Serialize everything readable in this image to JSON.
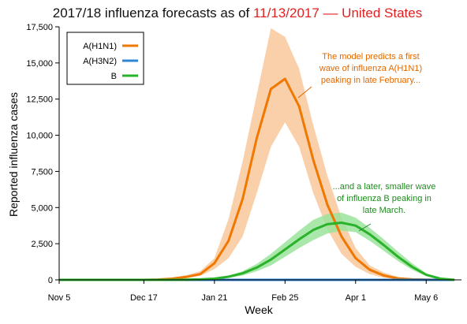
{
  "chart_data": {
    "type": "line",
    "title": {
      "prefix": "2017/18 influenza forecasts as of ",
      "date": "11/13/2017",
      "separator": " –– ",
      "region": "United States",
      "highlight_color": "#e02020"
    },
    "xlabel": "Week",
    "ylabel": "Reported influenza cases",
    "ylim": [
      0,
      17500
    ],
    "yticks": [
      0,
      2500,
      5000,
      7500,
      10000,
      12500,
      15000,
      17500
    ],
    "ytick_labels": [
      "0",
      "2,500",
      "5,000",
      "7,500",
      "10,000",
      "12,500",
      "15,000",
      "17,500"
    ],
    "xticks": [
      {
        "week": 0,
        "label": "Nov 5"
      },
      {
        "week": 6,
        "label": "Dec 17"
      },
      {
        "week": 11,
        "label": "Jan 21"
      },
      {
        "week": 16,
        "label": "Feb 25"
      },
      {
        "week": 21,
        "label": "Apr 1"
      },
      {
        "week": 26,
        "label": "May 6"
      }
    ],
    "xlim": [
      0,
      28.5
    ],
    "legend": {
      "position": "top-left",
      "entries": [
        {
          "name": "A(H1N1)",
          "color": "#f07800"
        },
        {
          "name": "A(H3N2)",
          "color": "#2f86d6"
        },
        {
          "name": "B",
          "color": "#2ab32a"
        }
      ]
    },
    "series": [
      {
        "name": "A(H1N1)",
        "color": "#f07800",
        "band_color": "#f8c89a",
        "x": [
          0,
          1,
          2,
          3,
          4,
          5,
          6,
          7,
          8,
          9,
          10,
          11,
          12,
          13,
          14,
          15,
          16,
          17,
          18,
          19,
          20,
          21,
          22,
          23,
          24,
          25,
          26,
          27,
          28
        ],
        "values": [
          0,
          0,
          0,
          0,
          0,
          0,
          0,
          20,
          80,
          200,
          400,
          1150,
          2700,
          5600,
          9800,
          13200,
          13900,
          12000,
          8300,
          5200,
          3000,
          1500,
          700,
          300,
          100,
          30,
          10,
          0,
          0
        ],
        "lower": [
          0,
          0,
          0,
          0,
          0,
          0,
          0,
          10,
          50,
          120,
          280,
          750,
          1500,
          3000,
          6000,
          9200,
          10900,
          9200,
          6000,
          3500,
          1800,
          900,
          400,
          150,
          50,
          15,
          5,
          0,
          0
        ],
        "upper": [
          0,
          0,
          0,
          0,
          0,
          0,
          0,
          40,
          140,
          320,
          600,
          1500,
          4200,
          8200,
          12800,
          17400,
          16800,
          14600,
          10700,
          7200,
          4300,
          2200,
          1000,
          500,
          200,
          80,
          20,
          0,
          0
        ]
      },
      {
        "name": "A(H3N2)",
        "color": "#2f86d6",
        "band_color": "#9cc8f0",
        "x": [
          0,
          1,
          2,
          3,
          4,
          5,
          6,
          7,
          8,
          9,
          10,
          11,
          12,
          13,
          14,
          15,
          16,
          17,
          18,
          19,
          20,
          21,
          22,
          23,
          24,
          25,
          26,
          27,
          28
        ],
        "values": [
          0,
          0,
          0,
          0,
          0,
          0,
          0,
          0,
          0,
          0,
          0,
          0,
          0,
          0,
          0,
          0,
          0,
          0,
          0,
          0,
          0,
          0,
          0,
          0,
          0,
          0,
          0,
          0,
          0
        ],
        "lower": [
          0,
          0,
          0,
          0,
          0,
          0,
          0,
          0,
          0,
          0,
          0,
          0,
          0,
          0,
          0,
          0,
          0,
          0,
          0,
          0,
          0,
          0,
          0,
          0,
          0,
          0,
          0,
          0,
          0
        ],
        "upper": [
          0,
          0,
          0,
          0,
          0,
          0,
          0,
          0,
          0,
          0,
          0,
          0,
          0,
          0,
          0,
          0,
          0,
          0,
          0,
          0,
          0,
          0,
          0,
          0,
          0,
          0,
          0,
          0,
          0
        ]
      },
      {
        "name": "B",
        "color": "#2ab32a",
        "band_color": "#9be39b",
        "x": [
          0,
          1,
          2,
          3,
          4,
          5,
          6,
          7,
          8,
          9,
          10,
          11,
          12,
          13,
          14,
          15,
          16,
          17,
          18,
          19,
          20,
          21,
          22,
          23,
          24,
          25,
          26,
          27,
          28
        ],
        "values": [
          0,
          0,
          0,
          0,
          0,
          0,
          0,
          0,
          0,
          10,
          30,
          80,
          220,
          450,
          850,
          1400,
          2100,
          2800,
          3450,
          3850,
          3950,
          3750,
          3150,
          2400,
          1600,
          900,
          350,
          80,
          0
        ],
        "lower": [
          0,
          0,
          0,
          0,
          0,
          0,
          0,
          0,
          0,
          5,
          15,
          50,
          150,
          300,
          600,
          1000,
          1600,
          2200,
          2750,
          3200,
          3400,
          3300,
          2700,
          2000,
          1300,
          700,
          250,
          50,
          0
        ],
        "upper": [
          0,
          0,
          0,
          0,
          0,
          0,
          0,
          0,
          0,
          15,
          45,
          110,
          290,
          600,
          1100,
          1800,
          2600,
          3400,
          4150,
          4550,
          4650,
          4300,
          3600,
          2800,
          1950,
          1150,
          450,
          120,
          0
        ]
      }
    ],
    "annotations": [
      {
        "lines": [
          "The model predicts a first",
          "wave of influenza A(H1N1)",
          "peaking in late February..."
        ],
        "color": "#e06800"
      },
      {
        "lines": [
          "...and a later, smaller wave",
          "of influenza B peaking in",
          "late March."
        ],
        "color": "#1f8a1f"
      }
    ]
  }
}
